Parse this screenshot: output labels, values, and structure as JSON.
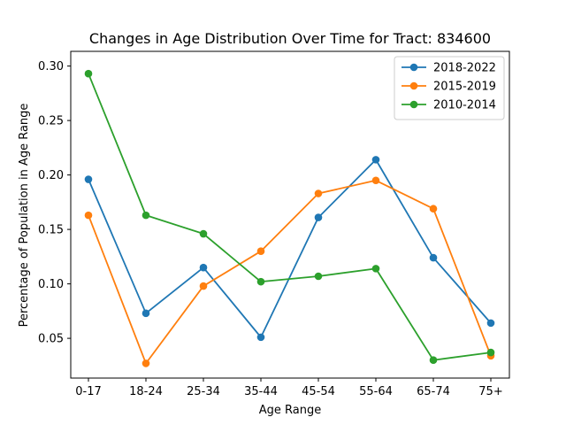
{
  "chart_data": {
    "type": "line",
    "title": "Changes in Age Distribution Over Time for Tract: 834600",
    "xlabel": "Age Range",
    "ylabel": "Percentage of Population in Age Range",
    "categories": [
      "0-17",
      "18-24",
      "25-34",
      "35-44",
      "45-54",
      "55-64",
      "65-74",
      "75+"
    ],
    "yticks": [
      "0.05",
      "0.10",
      "0.15",
      "0.20",
      "0.25",
      "0.30"
    ],
    "ylim": [
      0.0135,
      0.3135
    ],
    "grid": false,
    "legend_position": "top-right",
    "series": [
      {
        "name": "2018-2022",
        "color": "#1f77b4",
        "values": [
          0.196,
          0.073,
          0.115,
          0.051,
          0.161,
          0.214,
          0.124,
          0.064
        ]
      },
      {
        "name": "2015-2019",
        "color": "#ff7f0e",
        "values": [
          0.163,
          0.027,
          0.098,
          0.13,
          0.183,
          0.195,
          0.169,
          0.034
        ]
      },
      {
        "name": "2010-2014",
        "color": "#2ca02c",
        "values": [
          0.293,
          0.163,
          0.146,
          0.102,
          0.107,
          0.114,
          0.03,
          0.037
        ]
      }
    ]
  }
}
